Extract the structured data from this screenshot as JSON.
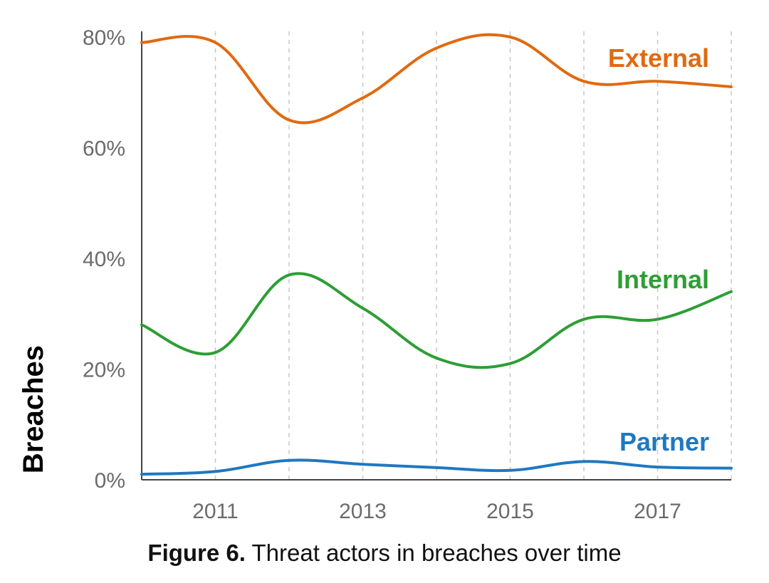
{
  "chart_data": {
    "type": "line",
    "ylabel": "Breaches",
    "xlabel": "",
    "x": [
      2010,
      2011,
      2012,
      2013,
      2014,
      2015,
      2016,
      2017,
      2018
    ],
    "xlim": [
      2010,
      2018
    ],
    "ylim": [
      0,
      80
    ],
    "x_ticks": [
      2011,
      2013,
      2015,
      2017
    ],
    "x_tick_labels": [
      "2011",
      "2013",
      "2015",
      "2017"
    ],
    "y_ticks": [
      0,
      20,
      40,
      60,
      80
    ],
    "y_tick_labels": [
      "0%",
      "20%",
      "40%",
      "60%",
      "80%"
    ],
    "grid": "vertical dashed lines at each year",
    "series": [
      {
        "name": "External",
        "color": "#e06a10",
        "values": [
          79,
          79,
          65,
          69,
          78,
          80,
          72,
          72,
          71
        ]
      },
      {
        "name": "Internal",
        "color": "#2e9e35",
        "values": [
          28,
          23,
          37,
          31,
          22,
          21,
          29,
          29,
          34
        ]
      },
      {
        "name": "Partner",
        "color": "#1f78c1",
        "values": [
          1,
          1.5,
          3.5,
          2.8,
          2.2,
          1.7,
          3.3,
          2.3,
          2.1
        ]
      }
    ]
  },
  "caption": {
    "prefix": "Figure 6.",
    "text": " Threat actors in breaches over time"
  }
}
